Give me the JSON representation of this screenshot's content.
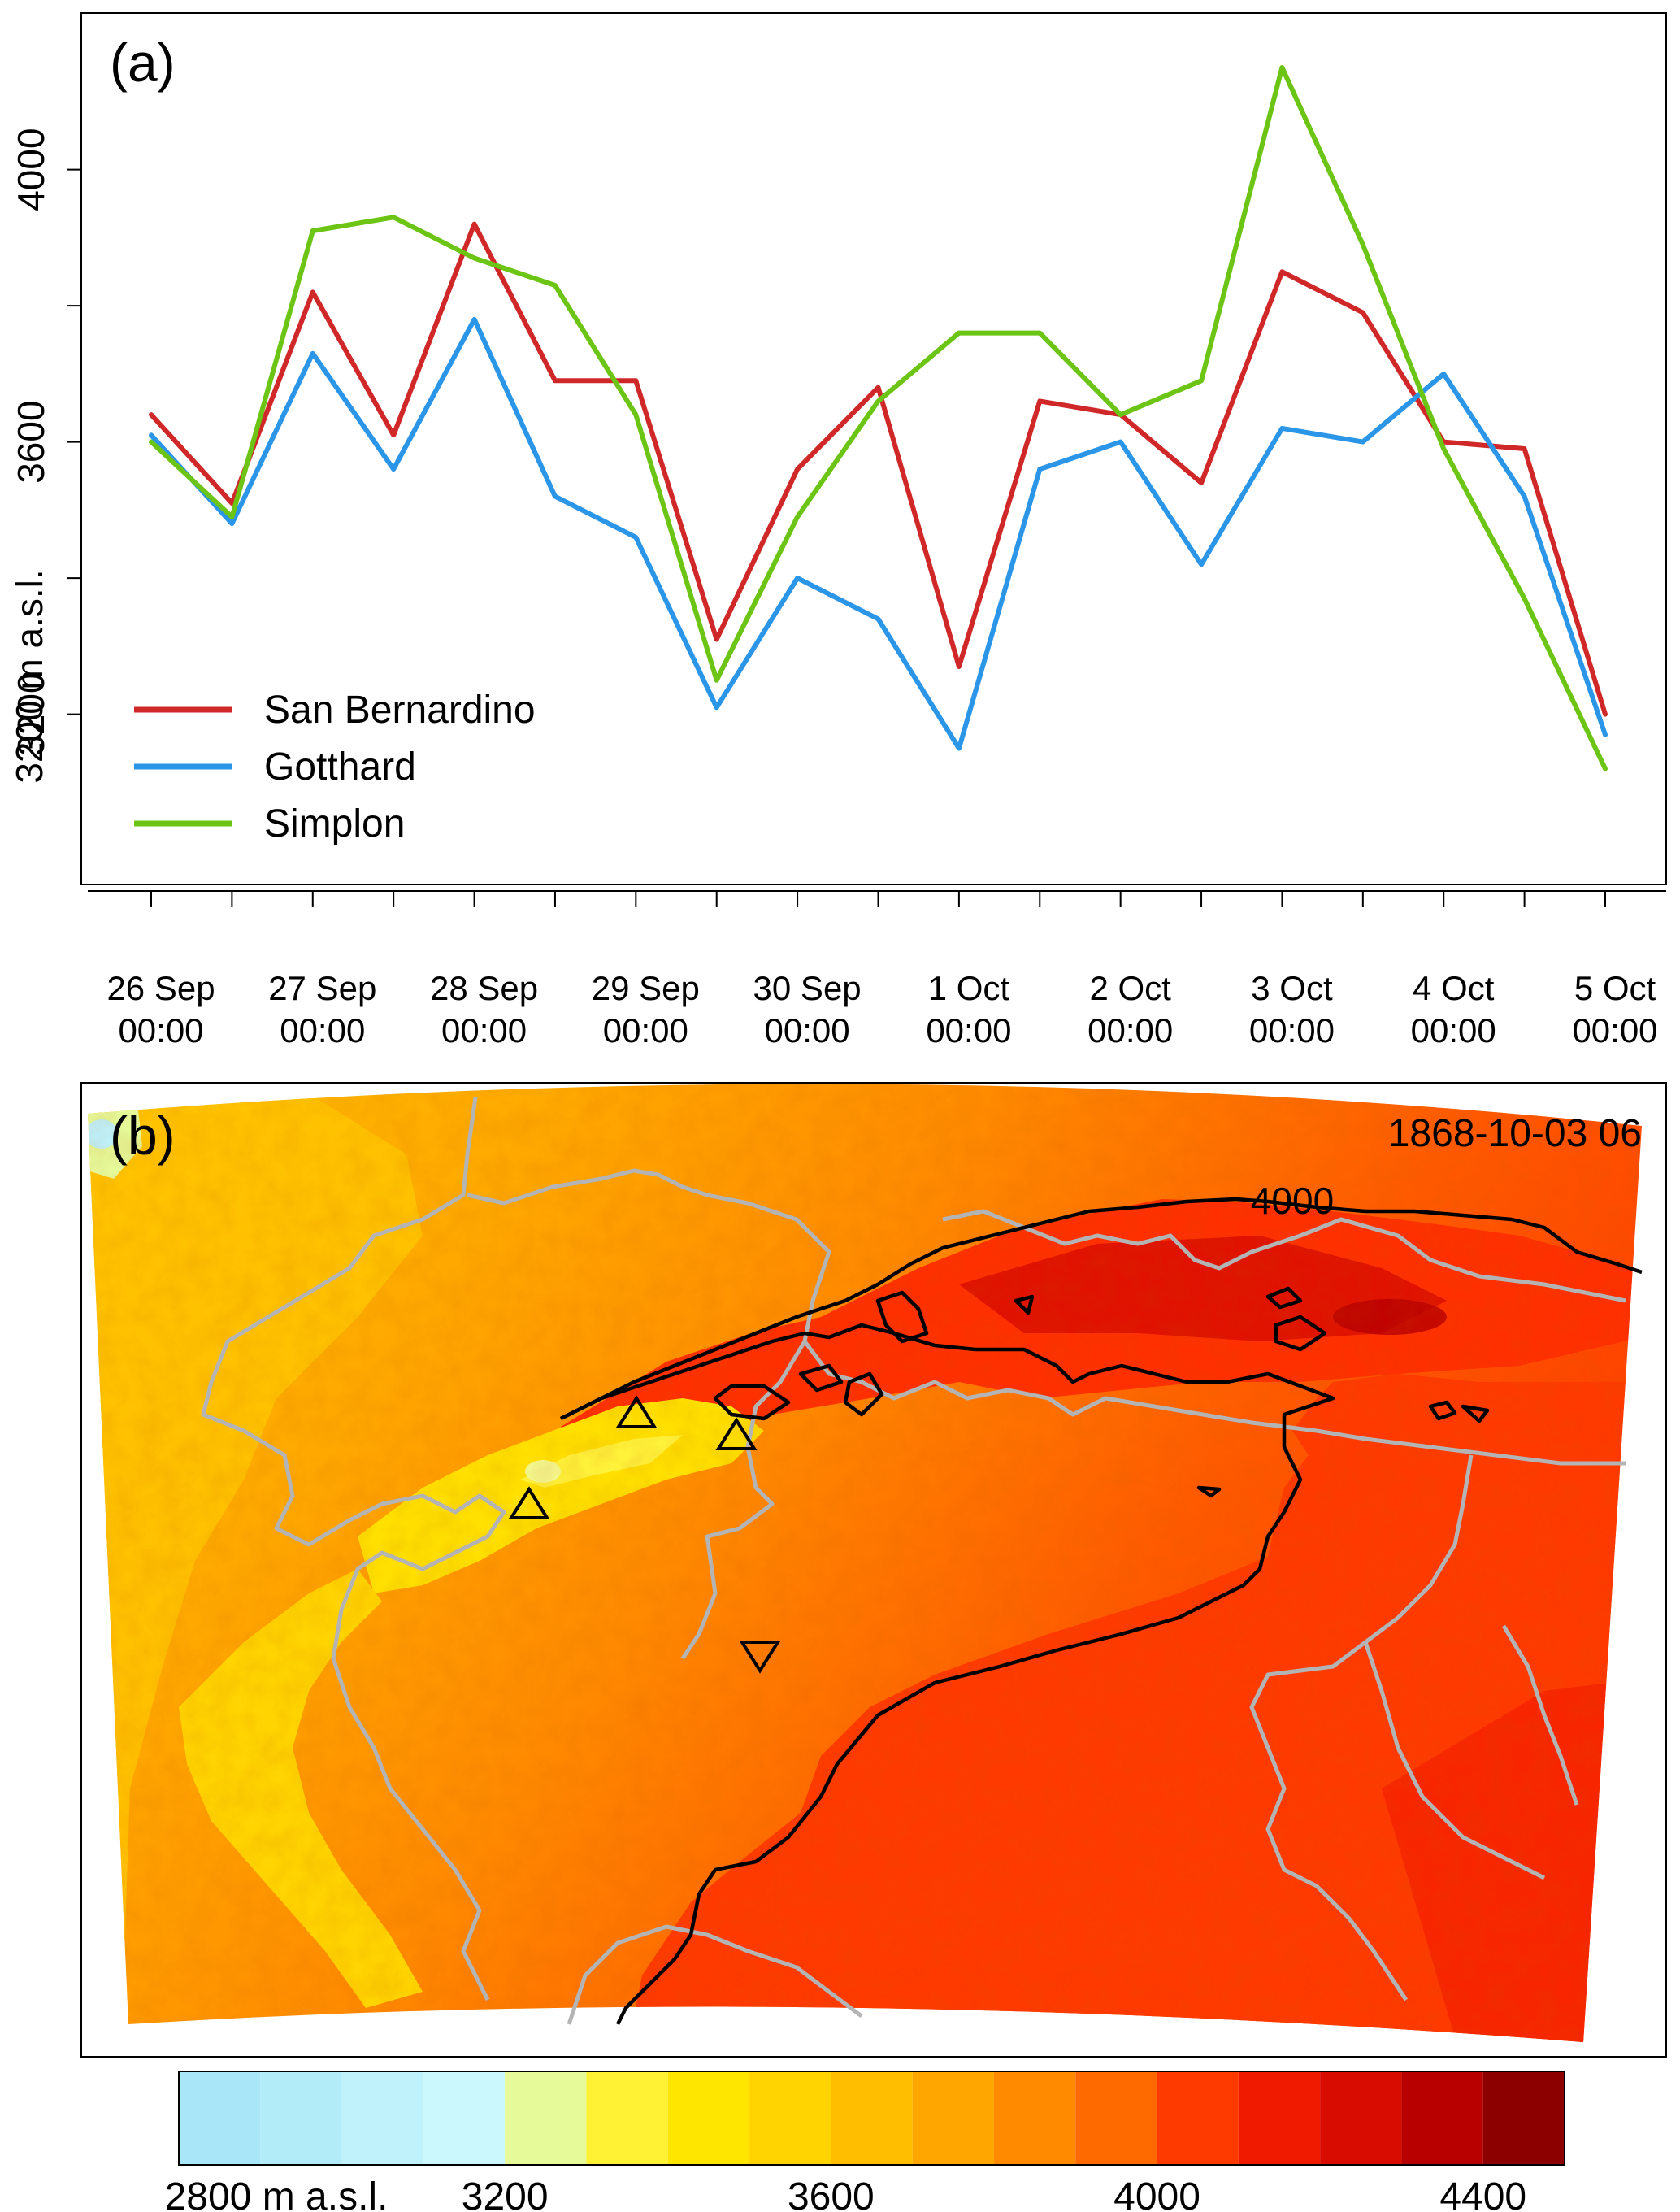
{
  "chart_data": [
    {
      "type": "line",
      "panel_label": "(a)",
      "ylabel": "3200 m a.s.l.",
      "yticks": [
        3200,
        3600,
        4000
      ],
      "ylim": [
        2950,
        4230
      ],
      "xlim_days": [
        0,
        9
      ],
      "x_tick_labels": [
        {
          "line1": "26 Sep",
          "line2": "00:00"
        },
        {
          "line1": "27 Sep",
          "line2": "00:00"
        },
        {
          "line1": "28 Sep",
          "line2": "00:00"
        },
        {
          "line1": "29 Sep",
          "line2": "00:00"
        },
        {
          "line1": "30 Sep",
          "line2": "00:00"
        },
        {
          "line1": "1 Oct",
          "line2": "00:00"
        },
        {
          "line1": "2 Oct",
          "line2": "00:00"
        },
        {
          "line1": "3 Oct",
          "line2": "00:00"
        },
        {
          "line1": "4 Oct",
          "line2": "00:00"
        },
        {
          "line1": "5 Oct",
          "line2": "00:00"
        }
      ],
      "legend_position": "bottom-left",
      "series": [
        {
          "name": "San Bernardino",
          "color": "#d02828",
          "x": [
            "26 Sep 00:00",
            "26 Sep 12:00",
            "27 Sep 00:00",
            "27 Sep 12:00",
            "28 Sep 00:00",
            "28 Sep 12:00",
            "29 Sep 00:00",
            "29 Sep 12:00",
            "30 Sep 00:00",
            "30 Sep 12:00",
            "1 Oct 00:00",
            "1 Oct 12:00",
            "2 Oct 00:00",
            "2 Oct 12:00",
            "3 Oct 00:00",
            "3 Oct 12:00",
            "4 Oct 00:00",
            "4 Oct 12:00",
            "5 Oct 00:00"
          ],
          "y": [
            3640,
            3510,
            3820,
            3610,
            3920,
            3690,
            3690,
            3310,
            3560,
            3680,
            3270,
            3660,
            3640,
            3540,
            3850,
            3790,
            3600,
            3590,
            3200
          ]
        },
        {
          "name": "Gotthard",
          "color": "#2b96e8",
          "x": [
            "26 Sep 00:00",
            "26 Sep 12:00",
            "27 Sep 00:00",
            "27 Sep 12:00",
            "28 Sep 00:00",
            "28 Sep 12:00",
            "29 Sep 00:00",
            "29 Sep 12:00",
            "30 Sep 00:00",
            "30 Sep 12:00",
            "1 Oct 00:00",
            "1 Oct 12:00",
            "2 Oct 00:00",
            "2 Oct 12:00",
            "3 Oct 00:00",
            "3 Oct 12:00",
            "4 Oct 00:00",
            "4 Oct 12:00",
            "5 Oct 00:00"
          ],
          "y": [
            3610,
            3480,
            3730,
            3560,
            3780,
            3520,
            3460,
            3210,
            3400,
            3340,
            3150,
            3560,
            3600,
            3420,
            3620,
            3600,
            3700,
            3520,
            3170
          ]
        },
        {
          "name": "Simplon",
          "color": "#6cc414",
          "x": [
            "26 Sep 00:00",
            "26 Sep 12:00",
            "27 Sep 00:00",
            "27 Sep 12:00",
            "28 Sep 00:00",
            "28 Sep 12:00",
            "29 Sep 00:00",
            "29 Sep 12:00",
            "30 Sep 00:00",
            "30 Sep 12:00",
            "1 Oct 00:00",
            "1 Oct 12:00",
            "2 Oct 00:00",
            "2 Oct 12:00",
            "3 Oct 00:00",
            "3 Oct 12:00",
            "4 Oct 00:00",
            "4 Oct 12:00",
            "5 Oct 00:00"
          ],
          "y": [
            3600,
            3490,
            3910,
            3930,
            3870,
            3830,
            3640,
            3250,
            3490,
            3660,
            3760,
            3760,
            3640,
            3690,
            4150,
            3890,
            3590,
            3370,
            3120
          ]
        }
      ]
    },
    {
      "type": "heatmap",
      "panel_label": "(b)",
      "timestamp": "1868-10-03 06",
      "contour_label": "4000",
      "colorbar": {
        "colors": [
          "#a8e6f8",
          "#b2ecf9",
          "#bff2fb",
          "#cbf8fd",
          "#e6fa9a",
          "#fff235",
          "#ffe600",
          "#ffd400",
          "#ffbe00",
          "#ffa600",
          "#ff8a00",
          "#ff6a00",
          "#ff3a00",
          "#f01a00",
          "#d80c00",
          "#b80000",
          "#8c0000"
        ],
        "boundaries": [
          2800,
          2900,
          3000,
          3100,
          3200,
          3300,
          3400,
          3500,
          3600,
          3700,
          3800,
          3900,
          4000,
          4100,
          4200,
          4300,
          4400,
          4500
        ],
        "tick_labels": [
          "2800 m a.s.l.",
          "3200",
          "3600",
          "4000",
          "4400"
        ],
        "tick_values": [
          2800,
          3200,
          3600,
          4000,
          4400
        ]
      },
      "markers": [
        {
          "symbol": "up-triangle",
          "label": ""
        },
        {
          "symbol": "up-triangle",
          "label": ""
        },
        {
          "symbol": "up-triangle",
          "label": ""
        },
        {
          "symbol": "down-triangle",
          "label": ""
        }
      ]
    }
  ]
}
